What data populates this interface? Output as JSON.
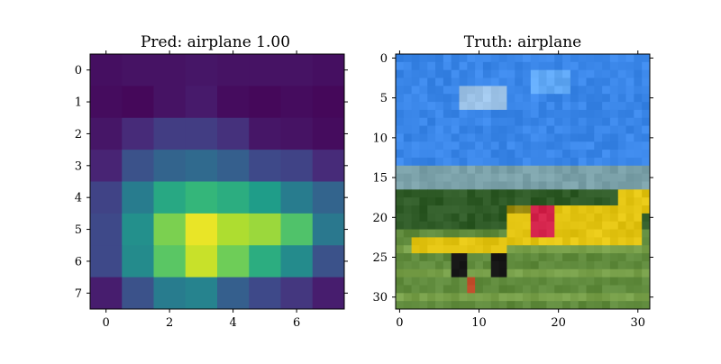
{
  "chart_data": [
    {
      "type": "heatmap",
      "title": "Pred: airplane 1.00",
      "colormap": "viridis",
      "x_ticks": [
        "0",
        "2",
        "4",
        "6"
      ],
      "y_ticks": [
        "0",
        "1",
        "2",
        "3",
        "4",
        "5",
        "6",
        "7"
      ],
      "xlim": [
        -0.5,
        7.5
      ],
      "ylim": [
        7.5,
        -0.5
      ],
      "values": [
        [
          0.04,
          0.05,
          0.05,
          0.06,
          0.05,
          0.05,
          0.05,
          0.04
        ],
        [
          0.03,
          0.02,
          0.05,
          0.07,
          0.03,
          0.02,
          0.03,
          0.02
        ],
        [
          0.06,
          0.12,
          0.18,
          0.18,
          0.14,
          0.06,
          0.05,
          0.03
        ],
        [
          0.1,
          0.25,
          0.32,
          0.34,
          0.3,
          0.22,
          0.2,
          0.12
        ],
        [
          0.2,
          0.42,
          0.6,
          0.66,
          0.62,
          0.55,
          0.42,
          0.32
        ],
        [
          0.22,
          0.5,
          0.8,
          0.97,
          0.88,
          0.85,
          0.72,
          0.4
        ],
        [
          0.22,
          0.48,
          0.74,
          0.92,
          0.78,
          0.62,
          0.48,
          0.25
        ],
        [
          0.08,
          0.25,
          0.42,
          0.45,
          0.3,
          0.22,
          0.16,
          0.08
        ]
      ]
    },
    {
      "type": "image",
      "title": "Truth: airplane",
      "x_ticks": [
        "0",
        "10",
        "20",
        "30"
      ],
      "y_ticks": [
        "0",
        "5",
        "10",
        "15",
        "20",
        "25",
        "30"
      ],
      "xlim": [
        -0.5,
        31.5
      ],
      "ylim": [
        31.5,
        -0.5
      ],
      "scene": {
        "sky": "#3a86e8",
        "sky_bright": "#60a8f5",
        "cloud": "#9dc3e8",
        "treeline": "#7aa0a8",
        "trees": "#2e5a26",
        "grass": "#5f8a3c",
        "grass_light": "#78a04a",
        "plane_yellow": "#e3c412",
        "plane_dark": "#9a8a10",
        "plane_red": "#d02048",
        "wheel": "#161616",
        "tail_red": "#c04c2a"
      }
    }
  ]
}
